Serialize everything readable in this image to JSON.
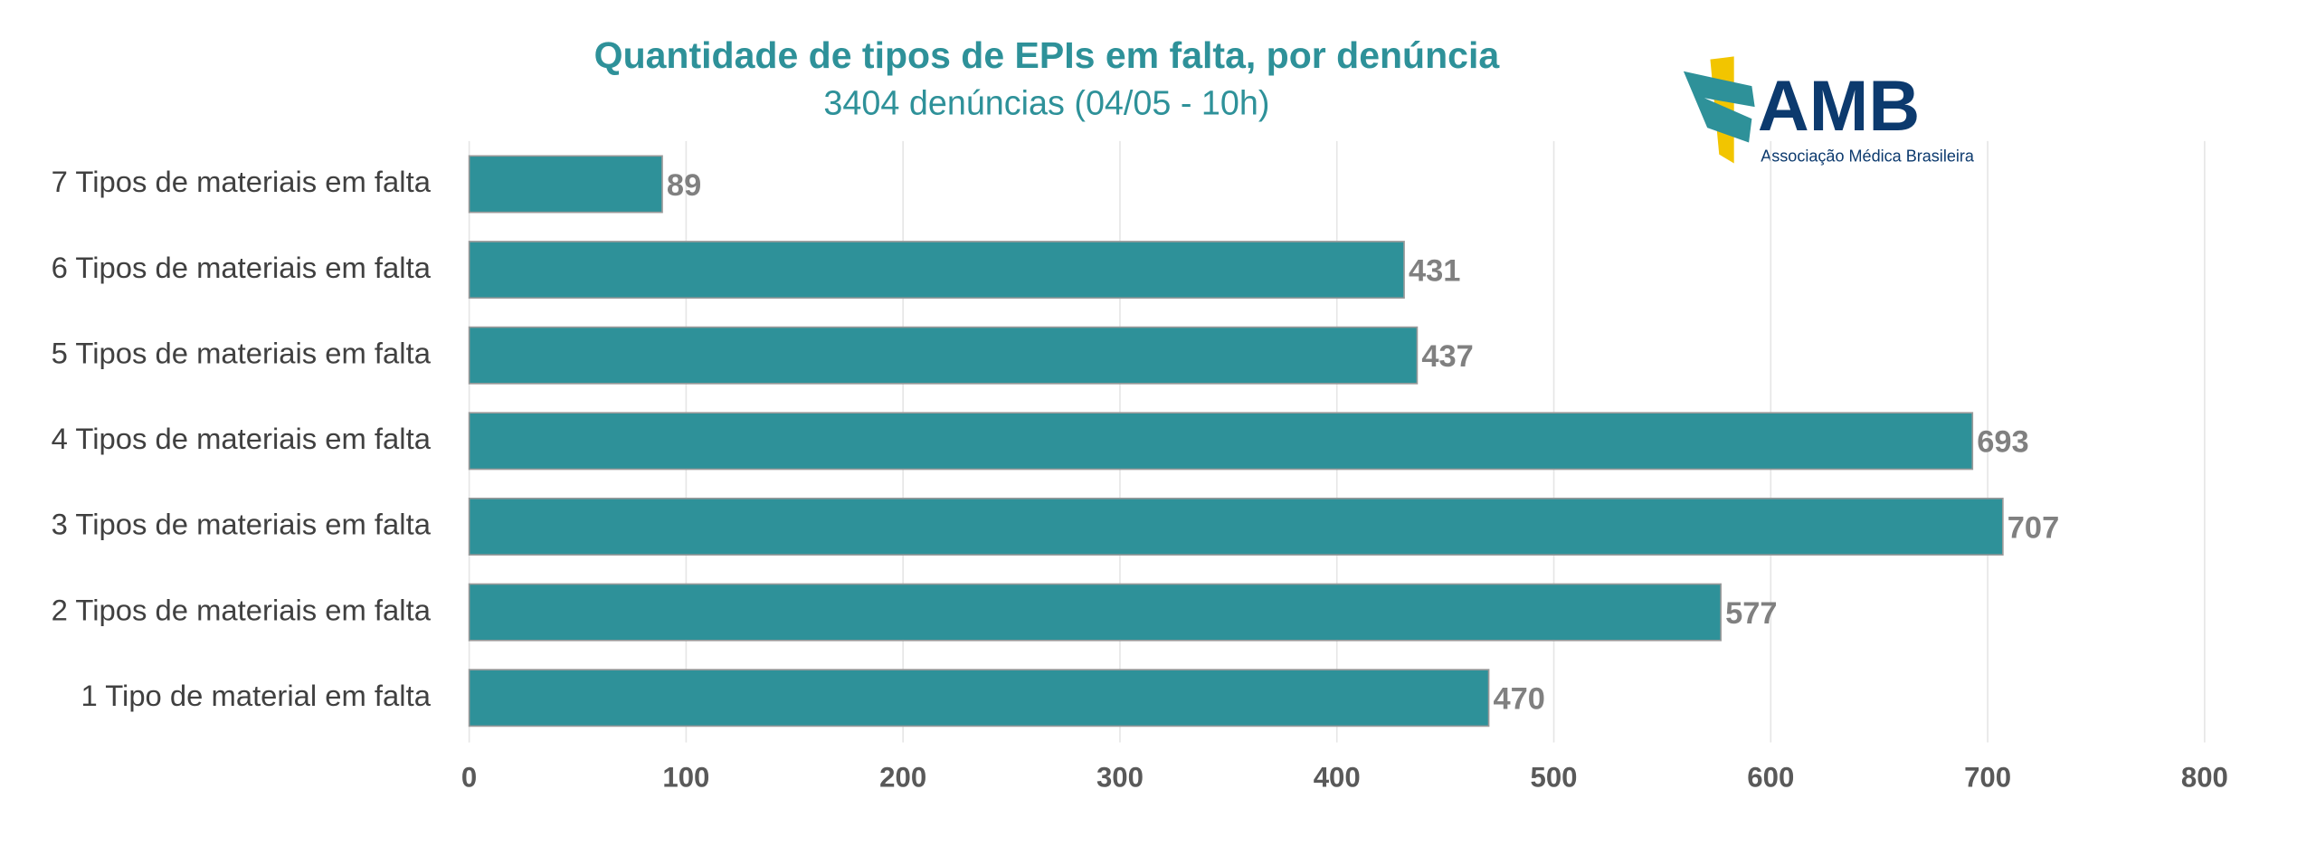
{
  "chart_data": {
    "type": "barh",
    "title": "Quantidade de tipos de EPIs em falta, por denúncia",
    "subtitle": "3404 denúncias (04/05 - 10h)",
    "categories": [
      "7 Tipos de materiais em falta",
      "6 Tipos de materiais em falta",
      "5 Tipos de materiais em falta",
      "4 Tipos de materiais em falta",
      "3 Tipos de materiais em falta",
      "2 Tipos de materiais em falta",
      "1 Tipo de material em falta"
    ],
    "values": [
      89,
      431,
      437,
      693,
      707,
      577,
      470
    ],
    "color": "#2e9199",
    "xlim": [
      0,
      800
    ],
    "xticks": [
      0,
      100,
      200,
      300,
      400,
      500,
      600,
      700,
      800
    ],
    "grid": true
  },
  "logo": {
    "name": "AMB",
    "tagline": "Associação Médica Brasileira"
  }
}
